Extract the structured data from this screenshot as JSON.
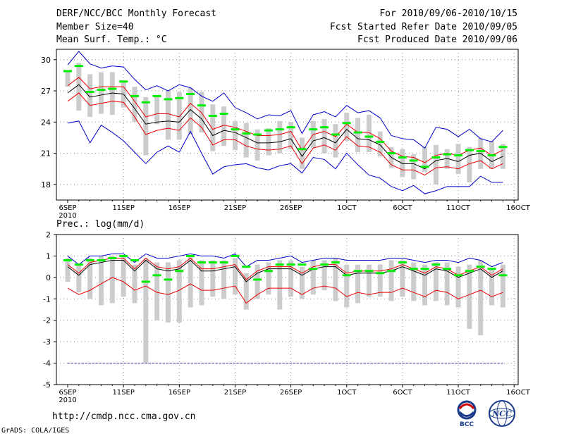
{
  "header": {
    "title": "DERF/NCC/BCC Monthly Forecast",
    "member_size": "Member Size=40",
    "variable": "Mean Surf. Temp.: °C",
    "period": "For 2010/09/06-2010/10/15",
    "started": "Fcst Started Refer Date 2010/09/05",
    "produced": "Fcst Produced Date 2010/09/06"
  },
  "footer": {
    "url": "http://cmdp.ncc.cma.gov.cn",
    "credit": "GrADS: COLA/IGES",
    "logo_bcc": "BCC",
    "logo_ncc": "NCC"
  },
  "colors": {
    "median": "#000000",
    "quartile": "#ee0000",
    "extreme": "#0000cc",
    "box": "#cccccc",
    "dash": "#00ee00",
    "clim": "#3333aa",
    "grid": "#888888"
  },
  "chart_data": [
    {
      "type": "line",
      "title": "Mean Surf. Temp.: °C",
      "x_ticks": [
        "6SEP",
        "11SEP",
        "16SEP",
        "21SEP",
        "26SEP",
        "1OCT",
        "6OCT",
        "11OCT",
        "16OCT"
      ],
      "x_sub": "2010",
      "x_label_text": [
        "6SEP",
        "11SEP",
        "16SEP",
        "21SEP",
        "26SEP",
        "1OCT",
        "6OCT",
        "11OCT",
        "16OCT"
      ],
      "xlim": [
        0,
        40
      ],
      "ylim": [
        16.5,
        31
      ],
      "y_ticks": [
        18,
        21,
        24,
        27,
        30
      ],
      "series": [
        {
          "name": "median",
          "values": [
            26.8,
            27.6,
            26.4,
            26.6,
            26.8,
            26.7,
            25.3,
            23.8,
            24.0,
            24.1,
            24.0,
            25.2,
            24.3,
            22.7,
            23.2,
            23.0,
            22.5,
            22.0,
            22.0,
            22.1,
            22.4,
            20.7,
            22.2,
            22.5,
            22.0,
            23.3,
            22.4,
            22.3,
            21.8,
            20.6,
            20.0,
            20.0,
            19.5,
            20.3,
            20.5,
            20.2,
            20.8,
            21.0,
            20.2,
            20.7
          ]
        },
        {
          "name": "q_upper",
          "values": [
            27.5,
            28.3,
            27.2,
            27.4,
            27.4,
            27.4,
            26.0,
            24.5,
            24.8,
            24.8,
            24.5,
            25.8,
            24.9,
            23.3,
            23.7,
            23.5,
            23.1,
            22.7,
            22.7,
            22.8,
            23.1,
            21.3,
            22.8,
            23.1,
            22.6,
            23.8,
            23.0,
            23.0,
            22.4,
            21.2,
            20.7,
            20.6,
            20.1,
            20.8,
            21.0,
            20.8,
            21.3,
            21.5,
            20.8,
            21.3
          ]
        },
        {
          "name": "q_lower",
          "values": [
            26.0,
            26.8,
            25.6,
            25.8,
            26.0,
            25.9,
            24.5,
            22.8,
            23.2,
            23.4,
            23.2,
            24.4,
            23.5,
            21.8,
            22.3,
            22.3,
            21.7,
            21.4,
            21.3,
            21.4,
            21.7,
            20.0,
            21.5,
            21.8,
            21.3,
            22.6,
            21.7,
            21.6,
            21.1,
            19.9,
            19.4,
            19.4,
            18.9,
            19.6,
            19.7,
            19.5,
            20.0,
            20.3,
            19.5,
            20.0
          ]
        },
        {
          "name": "max",
          "values": [
            29.5,
            30.8,
            29.6,
            29.2,
            29.4,
            29.3,
            28.1,
            27.1,
            27.5,
            27.0,
            27.6,
            27.3,
            26.5,
            26.0,
            26.8,
            25.4,
            24.9,
            24.3,
            24.7,
            24.6,
            25.1,
            22.9,
            24.7,
            25.0,
            24.5,
            25.6,
            24.9,
            25.1,
            24.4,
            22.7,
            22.4,
            22.3,
            21.5,
            23.5,
            23.3,
            22.6,
            23.3,
            22.4,
            22.1,
            23.2
          ]
        },
        {
          "name": "min",
          "values": [
            23.9,
            24.1,
            22.0,
            23.7,
            23.0,
            22.2,
            21.1,
            20.0,
            21.1,
            21.7,
            21.1,
            23.1,
            21.0,
            19.0,
            19.7,
            19.9,
            20.0,
            19.6,
            19.4,
            19.8,
            20.0,
            19.1,
            20.6,
            20.4,
            19.5,
            21.0,
            19.9,
            18.9,
            18.6,
            17.8,
            17.4,
            17.9,
            17.1,
            17.4,
            17.8,
            17.8,
            17.8,
            18.8,
            18.2,
            18.2
          ]
        },
        {
          "name": "box_hi",
          "values": [
            29.0,
            29.7,
            28.6,
            28.8,
            28.8,
            28.0,
            27.4,
            26.4,
            26.4,
            27.1,
            26.9,
            27.3,
            26.9,
            25.7,
            25.5,
            24.1,
            23.9,
            23.3,
            23.4,
            24.1,
            24.0,
            22.5,
            24.1,
            24.3,
            23.8,
            24.9,
            24.4,
            24.7,
            23.1,
            21.6,
            21.4,
            20.9,
            21.6,
            21.8,
            21.4,
            21.9,
            21.6,
            22.5,
            22.2,
            21.9
          ]
        },
        {
          "name": "box_lo",
          "values": [
            27.4,
            25.1,
            24.5,
            24.8,
            24.7,
            25.4,
            24.0,
            20.8,
            23.8,
            22.3,
            22.3,
            22.8,
            23.0,
            21.2,
            21.7,
            21.3,
            20.6,
            20.3,
            20.8,
            21.0,
            21.4,
            19.5,
            21.5,
            21.0,
            20.6,
            22.2,
            21.1,
            21.1,
            20.7,
            19.6,
            18.7,
            18.5,
            19.2,
            18.0,
            19.5,
            19.0,
            18.2,
            19.5,
            19.5,
            19.5
          ]
        },
        {
          "name": "ensemble_mean_dash",
          "values": [
            28.9,
            29.4,
            26.9,
            27.1,
            27.2,
            27.9,
            26.5,
            25.9,
            26.5,
            26.2,
            26.3,
            26.7,
            25.6,
            24.6,
            24.8,
            23.3,
            22.9,
            22.8,
            23.2,
            23.3,
            23.5,
            21.4,
            23.3,
            23.5,
            22.8,
            23.9,
            23.0,
            22.6,
            22.1,
            21.0,
            20.6,
            20.3,
            19.7,
            20.6,
            20.9,
            20.8,
            21.3,
            21.2,
            20.8,
            21.6
          ]
        }
      ]
    },
    {
      "type": "line",
      "title": "Prec.: log(mm/d)",
      "x_ticks": [
        "6SEP",
        "11SEP",
        "16SEP",
        "21SEP",
        "26SEP",
        "1OCT",
        "6OCT",
        "11OCT",
        "16OCT"
      ],
      "x_sub": "2010",
      "xlim": [
        0,
        40
      ],
      "ylim": [
        -5,
        2
      ],
      "y_ticks": [
        -5,
        -4,
        -3,
        -2,
        -1,
        0,
        1,
        2
      ],
      "series": [
        {
          "name": "median",
          "values": [
            0.5,
            0.1,
            0.6,
            0.7,
            0.8,
            0.8,
            0.3,
            0.8,
            0.4,
            0.3,
            0.4,
            0.8,
            0.3,
            0.3,
            0.4,
            0.5,
            -0.2,
            0.2,
            0.4,
            0.4,
            0.4,
            0.1,
            0.4,
            0.5,
            0.5,
            0.1,
            0.2,
            0.2,
            0.2,
            0.3,
            0.5,
            0.3,
            0.1,
            0.4,
            0.3,
            0.0,
            0.2,
            0.4,
            0.0,
            0.3
          ]
        },
        {
          "name": "q_upper",
          "values": [
            0.6,
            0.2,
            0.7,
            0.8,
            0.9,
            0.9,
            0.4,
            0.9,
            0.5,
            0.4,
            0.5,
            0.9,
            0.4,
            0.4,
            0.5,
            0.6,
            -0.1,
            0.3,
            0.5,
            0.5,
            0.5,
            0.2,
            0.5,
            0.6,
            0.6,
            0.2,
            0.3,
            0.3,
            0.3,
            0.4,
            0.6,
            0.4,
            0.2,
            0.5,
            0.4,
            0.1,
            0.3,
            0.5,
            0.1,
            0.4
          ]
        },
        {
          "name": "q_lower",
          "values": [
            -0.5,
            -0.8,
            -0.6,
            -0.3,
            0.0,
            -0.2,
            -0.6,
            -0.4,
            -0.7,
            -0.8,
            -0.6,
            -0.3,
            -0.6,
            -0.6,
            -0.5,
            -0.4,
            -1.2,
            -0.8,
            -0.5,
            -0.5,
            -0.5,
            -0.8,
            -0.5,
            -0.4,
            -0.5,
            -0.9,
            -0.7,
            -0.8,
            -0.7,
            -0.7,
            -0.5,
            -0.7,
            -0.9,
            -0.6,
            -0.7,
            -1.0,
            -0.8,
            -0.6,
            -0.9,
            -0.7
          ]
        },
        {
          "name": "max",
          "values": [
            1.0,
            0.6,
            1.0,
            1.0,
            1.1,
            1.1,
            0.7,
            1.1,
            0.9,
            0.9,
            1.0,
            1.1,
            1.0,
            1.0,
            0.9,
            1.1,
            0.5,
            0.8,
            0.8,
            0.9,
            1.0,
            0.7,
            0.8,
            0.9,
            0.9,
            0.8,
            0.8,
            0.8,
            0.8,
            0.9,
            0.9,
            0.8,
            0.7,
            0.8,
            0.8,
            0.7,
            0.9,
            0.8,
            0.5,
            0.7
          ]
        },
        {
          "name": "min",
          "values": [
            -4.0,
            -4.0,
            -4.0,
            -4.0,
            -4.0,
            -4.0,
            -4.0,
            -4.0,
            -4.0,
            -4.0,
            -4.0,
            -4.0,
            -4.0,
            -4.0,
            -4.0,
            -4.0,
            -4.0,
            -4.0,
            -4.0,
            -4.0,
            -4.0,
            -4.0,
            -4.0,
            -4.0,
            -4.0,
            -4.0,
            -4.0,
            -4.0,
            -4.0,
            -4.0,
            -4.0,
            -4.0,
            -4.0,
            -4.0,
            -4.0,
            -4.0,
            -4.0,
            -4.0,
            -4.0,
            -4.0
          ]
        },
        {
          "name": "box_hi",
          "values": [
            0.9,
            0.6,
            0.9,
            1.0,
            1.0,
            1.0,
            0.6,
            0.9,
            0.7,
            0.7,
            0.8,
            1.0,
            0.8,
            0.8,
            0.8,
            0.9,
            0.2,
            0.6,
            0.7,
            0.8,
            0.8,
            0.5,
            0.8,
            0.8,
            0.9,
            0.6,
            0.6,
            0.6,
            0.6,
            0.8,
            0.8,
            0.7,
            0.6,
            0.7,
            0.7,
            0.5,
            0.6,
            0.8,
            0.4,
            0.6
          ]
        },
        {
          "name": "box_lo",
          "values": [
            -0.2,
            -0.7,
            -1.0,
            -1.3,
            -1.2,
            -0.9,
            -1.2,
            -4.0,
            -2.0,
            -2.1,
            -2.1,
            -1.4,
            -1.3,
            -0.9,
            -1.0,
            -0.8,
            -1.5,
            -1.0,
            -0.8,
            -1.5,
            -0.9,
            -1.0,
            -0.8,
            -0.6,
            -1.1,
            -1.4,
            -1.2,
            -0.9,
            -0.9,
            -1.1,
            -0.9,
            -1.1,
            -1.3,
            -1.1,
            -1.3,
            -1.4,
            -2.4,
            -2.7,
            -1.3,
            -1.4
          ]
        },
        {
          "name": "ensemble_mean_dash",
          "values": [
            0.8,
            0.6,
            0.8,
            0.8,
            0.9,
            1.0,
            0.8,
            -0.2,
            0.1,
            -0.1,
            0.3,
            1.0,
            0.7,
            0.7,
            0.7,
            1.0,
            0.5,
            -0.1,
            0.3,
            0.6,
            0.6,
            0.6,
            0.4,
            0.6,
            0.7,
            0.1,
            0.3,
            0.3,
            0.2,
            0.3,
            0.7,
            0.4,
            0.4,
            0.6,
            0.4,
            0.1,
            0.3,
            0.5,
            0.4,
            0.1
          ]
        },
        {
          "name": "climatology",
          "values": [
            -4.0,
            -4.0
          ]
        }
      ]
    }
  ]
}
